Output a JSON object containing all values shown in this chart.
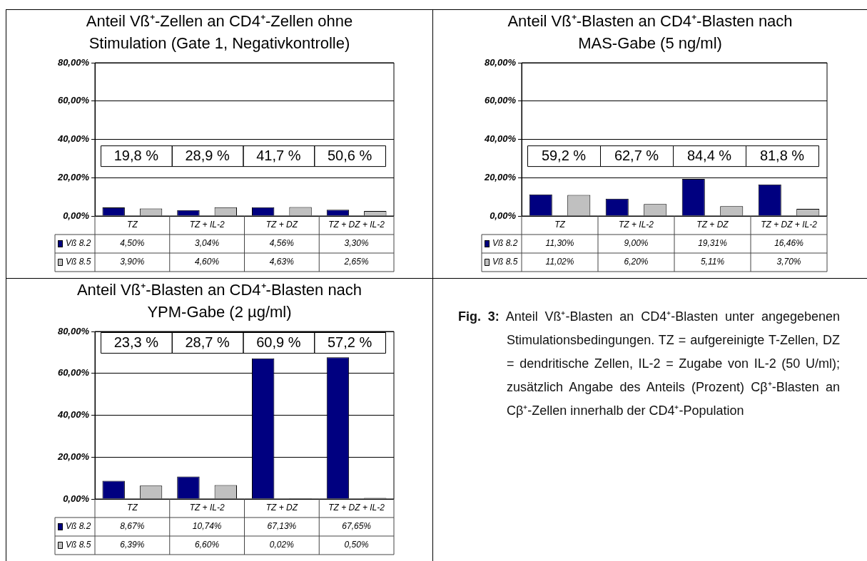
{
  "chart_data": [
    {
      "type": "bar",
      "title": "Anteil Vß⁺-Zellen an CD4⁺-Zellen ohne Stimulation (Gate 1, Negativkontrolle)",
      "categories": [
        "TZ",
        "TZ + IL-2",
        "TZ + DZ",
        "TZ + DZ + IL-2"
      ],
      "series": [
        {
          "name": "Vß 8.2",
          "color": "#000080",
          "values": [
            4.5,
            3.04,
            4.56,
            3.3
          ],
          "value_labels": [
            "4,50%",
            "3,04%",
            "4,56%",
            "3,30%"
          ]
        },
        {
          "name": "Vß 8.5",
          "color": "#c0c0c0",
          "values": [
            3.9,
            4.6,
            4.63,
            2.65
          ],
          "value_labels": [
            "3,90%",
            "4,60%",
            "4,63%",
            "2,65%"
          ]
        }
      ],
      "ylim": [
        0,
        80
      ],
      "yticks": [
        {
          "value": 0,
          "label": "0,00%"
        },
        {
          "value": 20,
          "label": "20,00%"
        },
        {
          "value": 40,
          "label": "40,00%"
        },
        {
          "value": 60,
          "label": "60,00%"
        },
        {
          "value": 80,
          "label": "80,00%"
        }
      ],
      "grid": "y",
      "legend": "bottom",
      "annotations": [
        "19,8 %",
        "28,9 %",
        "41,7 %",
        "50,6 %"
      ]
    },
    {
      "type": "bar",
      "title": "Anteil Vß⁺-Blasten an CD4⁺-Blasten nach MAS-Gabe (5 ng/ml)",
      "categories": [
        "TZ",
        "TZ + IL-2",
        "TZ + DZ",
        "TZ + DZ + IL-2"
      ],
      "series": [
        {
          "name": "Vß 8.2",
          "color": "#000080",
          "values": [
            11.3,
            9.0,
            19.31,
            16.46
          ],
          "value_labels": [
            "11,30%",
            "9,00%",
            "19,31%",
            "16,46%"
          ]
        },
        {
          "name": "Vß 8.5",
          "color": "#c0c0c0",
          "values": [
            11.02,
            6.2,
            5.11,
            3.7
          ],
          "value_labels": [
            "11,02%",
            "6,20%",
            "5,11%",
            "3,70%"
          ]
        }
      ],
      "ylim": [
        0,
        80
      ],
      "yticks": [
        {
          "value": 0,
          "label": "0,00%"
        },
        {
          "value": 20,
          "label": "20,00%"
        },
        {
          "value": 40,
          "label": "40,00%"
        },
        {
          "value": 60,
          "label": "60,00%"
        },
        {
          "value": 80,
          "label": "80,00%"
        }
      ],
      "grid": "y",
      "legend": "bottom",
      "annotations": [
        "59,2 %",
        "62,7 %",
        "84,4 %",
        "81,8 %"
      ]
    },
    {
      "type": "bar",
      "title": "Anteil Vß⁺-Blasten an CD4⁺-Blasten nach YPM-Gabe (2 µg/ml)",
      "categories": [
        "TZ",
        "TZ + IL-2",
        "TZ + DZ",
        "TZ + DZ + IL-2"
      ],
      "series": [
        {
          "name": "Vß 8.2",
          "color": "#000080",
          "values": [
            8.67,
            10.74,
            67.13,
            67.65
          ],
          "value_labels": [
            "8,67%",
            "10,74%",
            "67,13%",
            "67,65%"
          ]
        },
        {
          "name": "Vß 8.5",
          "color": "#c0c0c0",
          "values": [
            6.39,
            6.6,
            0.02,
            0.5
          ],
          "value_labels": [
            "6,39%",
            "6,60%",
            "0,02%",
            "0,50%"
          ]
        }
      ],
      "ylim": [
        0,
        80
      ],
      "yticks": [
        {
          "value": 0,
          "label": "0,00%"
        },
        {
          "value": 20,
          "label": "20,00%"
        },
        {
          "value": 40,
          "label": "40,00%"
        },
        {
          "value": 60,
          "label": "60,00%"
        },
        {
          "value": 80,
          "label": "80,00%"
        }
      ],
      "grid": "y",
      "legend": "bottom",
      "annotations": [
        "23,3 %",
        "28,7 %",
        "60,9 %",
        "57,2 %"
      ]
    },
    {
      "type": "other",
      "title": "Fig. 3:",
      "annotations": [
        "Anteil Vß⁺-Blasten an CD4⁺-Blasten unter angegebenen Stimulationsbedingungen. TZ = aufgereinigte T-Zellen, DZ = dendritische Zellen, IL-2 = Zugabe von IL-2 (50 U/ml); zusätzlich Angabe des Anteils (Prozent) Cβ⁺-Blasten an Cβ⁺-Zellen innerhalb der CD4⁺-Population"
      ]
    }
  ]
}
